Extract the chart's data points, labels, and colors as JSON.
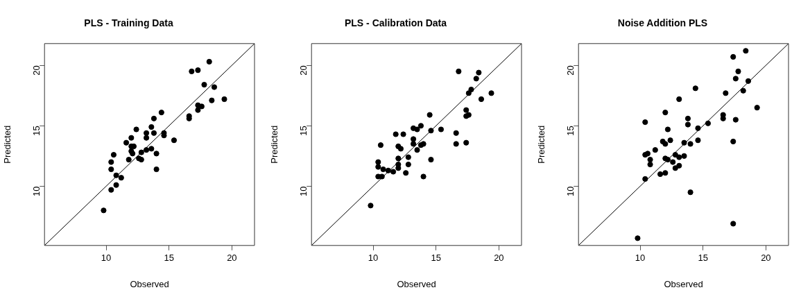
{
  "chart_data": [
    {
      "type": "scatter",
      "title": "PLS - Training Data",
      "xlabel": "Observed",
      "ylabel": "Predicted",
      "xlim": [
        5.1,
        21.8
      ],
      "ylim": [
        5.1,
        21.8
      ],
      "xticks": [
        10,
        15,
        20
      ],
      "yticks": [
        10,
        15,
        20
      ],
      "grid": false,
      "legend": false,
      "marker": "circle",
      "series": [
        {
          "type": "scatter",
          "color": "#000000",
          "x": [
            9.8,
            10.4,
            10.8,
            10.4,
            10.4,
            10.6,
            10.8,
            11.2,
            11.6,
            11.8,
            12.0,
            12.0,
            12.2,
            12.0,
            12.1,
            12.4,
            12.6,
            12.8,
            12.8,
            13.2,
            13.2,
            13.2,
            13.6,
            13.6,
            13.8,
            13.8,
            14.0,
            14.0,
            14.4,
            14.6,
            14.6,
            15.4,
            16.6,
            16.6,
            16.8,
            17.3,
            17.3,
            17.3,
            17.6,
            17.8,
            18.2,
            18.4,
            18.6,
            19.4
          ],
          "values": [
            8.0,
            9.7,
            10.1,
            11.4,
            12.0,
            12.6,
            10.9,
            10.7,
            13.6,
            12.2,
            14.0,
            13.3,
            13.3,
            12.9,
            12.7,
            14.7,
            12.3,
            12.2,
            12.8,
            14.0,
            14.4,
            13.0,
            14.9,
            13.1,
            15.6,
            14.4,
            12.7,
            11.4,
            16.1,
            14.4,
            14.2,
            13.8,
            15.8,
            15.6,
            19.5,
            19.6,
            16.3,
            16.7,
            16.6,
            18.4,
            20.3,
            17.1,
            18.2,
            17.2
          ]
        },
        {
          "type": "line",
          "color": "#000000",
          "line_style": "solid",
          "marker": "none",
          "x": [
            5.1,
            21.8
          ],
          "values": [
            5.1,
            21.8
          ]
        }
      ]
    },
    {
      "type": "scatter",
      "title": "PLS - Calibration Data",
      "xlabel": "Observed",
      "ylabel": "Predicted",
      "xlim": [
        5.1,
        21.8
      ],
      "ylim": [
        5.1,
        21.8
      ],
      "xticks": [
        10,
        15,
        20
      ],
      "yticks": [
        10,
        15,
        20
      ],
      "grid": false,
      "legend": false,
      "marker": "circle",
      "series": [
        {
          "type": "scatter",
          "color": "#000000",
          "x": [
            9.8,
            10.4,
            10.4,
            10.4,
            10.7,
            10.6,
            10.8,
            11.2,
            11.6,
            11.8,
            12.0,
            12.0,
            12.0,
            12.0,
            12.1,
            12.2,
            12.4,
            12.6,
            12.8,
            12.8,
            13.2,
            13.2,
            13.2,
            13.5,
            13.5,
            13.8,
            13.8,
            14.0,
            14.0,
            14.5,
            14.6,
            14.6,
            15.4,
            16.6,
            16.6,
            16.8,
            17.4,
            17.4,
            17.4,
            17.6,
            17.6,
            17.8,
            18.2,
            18.4,
            18.6,
            19.4
          ],
          "values": [
            8.4,
            12.0,
            11.6,
            10.8,
            10.8,
            13.4,
            11.4,
            11.3,
            11.2,
            14.3,
            11.5,
            12.3,
            11.8,
            13.3,
            null,
            13.1,
            14.3,
            11.1,
            12.4,
            11.8,
            14.8,
            13.9,
            13.5,
            14.7,
            13.0,
            15.0,
            13.4,
            13.5,
            10.8,
            15.9,
            14.6,
            12.2,
            14.7,
            14.4,
            13.5,
            19.5,
            16.3,
            15.8,
            13.6,
            15.9,
            17.7,
            18.0,
            18.9,
            19.4,
            17.2,
            17.7
          ]
        },
        {
          "type": "line",
          "color": "#000000",
          "line_style": "solid",
          "marker": "none",
          "x": [
            5.1,
            21.8
          ],
          "values": [
            5.1,
            21.8
          ]
        }
      ]
    },
    {
      "type": "scatter",
      "title": "Noise Addition PLS",
      "xlabel": "Observed",
      "ylabel": "Predicted",
      "xlim": [
        5.1,
        21.8
      ],
      "ylim": [
        5.1,
        21.8
      ],
      "xticks": [
        10,
        15,
        20
      ],
      "yticks": [
        10,
        15,
        20
      ],
      "grid": false,
      "legend": false,
      "marker": "circle",
      "series": [
        {
          "type": "scatter",
          "color": "#000000",
          "x": [
            9.8,
            10.4,
            10.4,
            10.4,
            10.6,
            10.8,
            10.8,
            11.2,
            11.6,
            11.8,
            12.0,
            12.0,
            12.0,
            12.0,
            12.2,
            12.2,
            12.4,
            12.6,
            12.8,
            12.8,
            13.1,
            13.1,
            13.1,
            13.5,
            13.5,
            13.8,
            13.8,
            14.0,
            14.0,
            14.4,
            14.6,
            14.6,
            15.4,
            16.6,
            16.6,
            16.8,
            17.4,
            17.4,
            17.4,
            17.6,
            17.6,
            17.8,
            18.2,
            18.4,
            18.6,
            19.3
          ],
          "values": [
            5.7,
            15.3,
            10.6,
            12.6,
            12.7,
            12.2,
            11.8,
            13.0,
            11.0,
            13.7,
            16.1,
            13.5,
            12.3,
            11.1,
            14.7,
            12.2,
            13.8,
            12.0,
            12.6,
            11.5,
            17.2,
            12.4,
            11.7,
            13.6,
            12.5,
            15.6,
            15.1,
            9.5,
            13.5,
            18.1,
            14.8,
            13.8,
            15.2,
            15.9,
            15.6,
            17.7,
            20.7,
            13.7,
            6.9,
            18.9,
            15.5,
            19.5,
            17.9,
            21.2,
            18.7,
            16.5
          ]
        },
        {
          "type": "line",
          "color": "#000000",
          "line_style": "solid",
          "marker": "none",
          "x": [
            5.1,
            21.8
          ],
          "values": [
            5.1,
            21.8
          ]
        }
      ]
    }
  ]
}
